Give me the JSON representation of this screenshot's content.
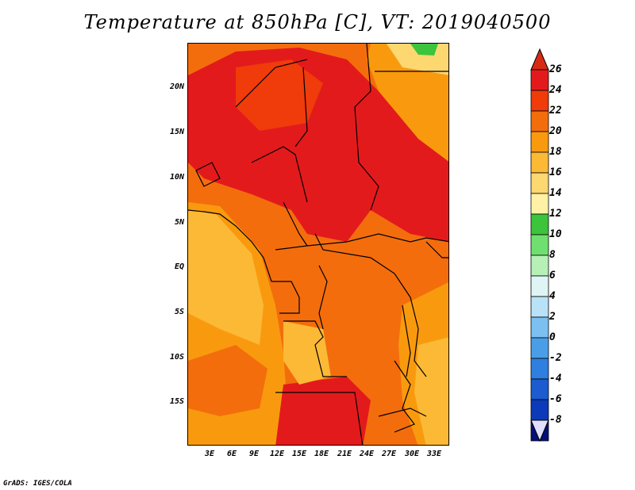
{
  "title": "Temperature at 850hPa [C], VT: 2019040500",
  "credit": "GrADS: IGES/COLA",
  "map": {
    "variable": "Temperature at 850hPa",
    "units": "C",
    "valid_time": "2019040500",
    "lat_ticks": [
      "20N",
      "15N",
      "10N",
      "5N",
      "EQ",
      "5S",
      "10S",
      "15S"
    ],
    "lon_ticks": [
      "3E",
      "6E",
      "9E",
      "12E",
      "15E",
      "18E",
      "21E",
      "24E",
      "27E",
      "30E",
      "33E"
    ]
  },
  "colorbar": {
    "labels": [
      "26",
      "24",
      "22",
      "20",
      "18",
      "16",
      "14",
      "12",
      "10",
      "8",
      "6",
      "4",
      "2",
      "0",
      "-2",
      "-4",
      "-6",
      "-8"
    ],
    "colors": [
      "#e31a1c",
      "#f03b0b",
      "#f36d0d",
      "#f99a0e",
      "#fbb936",
      "#fdd770",
      "#fff2a6",
      "#3cc43c",
      "#6fe06f",
      "#b7f0b7",
      "#dff5f5",
      "#b9e2f7",
      "#7cc0f2",
      "#4a9ee8",
      "#2f7fe0",
      "#1c5cd0",
      "#0d3ab8",
      "#041078"
    ],
    "top_arrow_color": "#d72a15",
    "bottom_arrow_color": "#e0e0ff"
  }
}
